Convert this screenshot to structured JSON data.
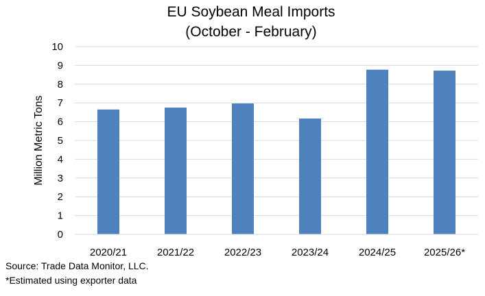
{
  "chart_data": {
    "type": "bar",
    "title": "EU Soybean Meal Imports",
    "subtitle": "(October - February)",
    "xlabel": "",
    "ylabel": "Million Metric Tons",
    "ylim": [
      0,
      10
    ],
    "yticks": [
      "0",
      "1",
      "2",
      "3",
      "4",
      "5",
      "6",
      "7",
      "8",
      "9",
      "10"
    ],
    "categories": [
      "2020/21",
      "2021/22",
      "2022/23",
      "2023/24",
      "2024/25",
      "2025/26*"
    ],
    "values": [
      6.65,
      6.75,
      6.97,
      6.17,
      8.77,
      8.72
    ],
    "bar_color": "#4f81bd",
    "grid": true,
    "legend": "none"
  },
  "footnotes": {
    "source": "Source: Trade Data Monitor, LLC.",
    "estimate": "*Estimated using exporter data"
  }
}
